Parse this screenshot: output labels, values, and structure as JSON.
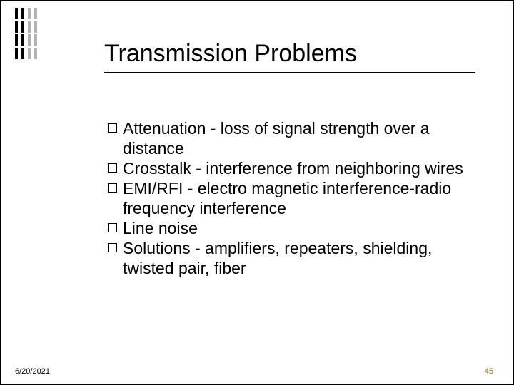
{
  "slide": {
    "title": "Transmission Problems",
    "bullets": [
      "Attenuation - loss of signal strength over a distance",
      "Crosstalk - interference from neighboring wires",
      "EMI/RFI - electro magnetic interference-radio frequency interference",
      "Line noise",
      "Solutions - amplifiers, repeaters, shielding, twisted pair, fiber"
    ],
    "footer": {
      "date": "6/20/2021",
      "page": "45"
    }
  },
  "style": {
    "background_color": "#ffffff",
    "title_fontsize": 34,
    "title_color": "#000000",
    "underline_color": "#000000",
    "bullet_fontsize": 23,
    "bullet_text_color": "#000000",
    "bullet_marker_border": "#000000",
    "footer_date_color": "#000000",
    "footer_page_color": "#b85c00",
    "footer_fontsize": 11,
    "tick_colors": [
      "#000000",
      "#000000",
      "#000000",
      "#000000"
    ],
    "tick_opacity_faded": 0.3
  }
}
